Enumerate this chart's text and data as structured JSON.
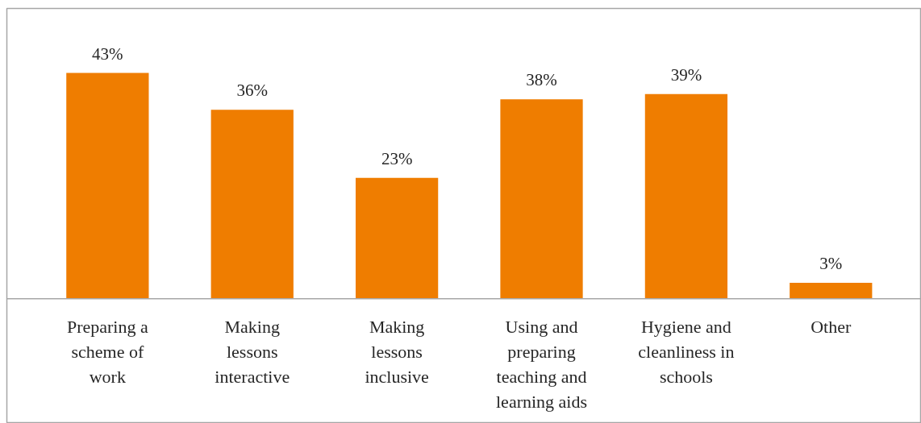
{
  "chart_data": {
    "type": "bar",
    "categories": [
      "Preparing a scheme of work",
      "Making lessons interactive",
      "Making lessons inclusive",
      "Using and preparing teaching and learning aids",
      "Hygiene and cleanliness in schools",
      "Other"
    ],
    "values": [
      43,
      36,
      23,
      38,
      39,
      3
    ],
    "value_labels": [
      "43%",
      "36%",
      "23%",
      "38%",
      "39%",
      "3%"
    ],
    "color": "#ef7d00"
  }
}
